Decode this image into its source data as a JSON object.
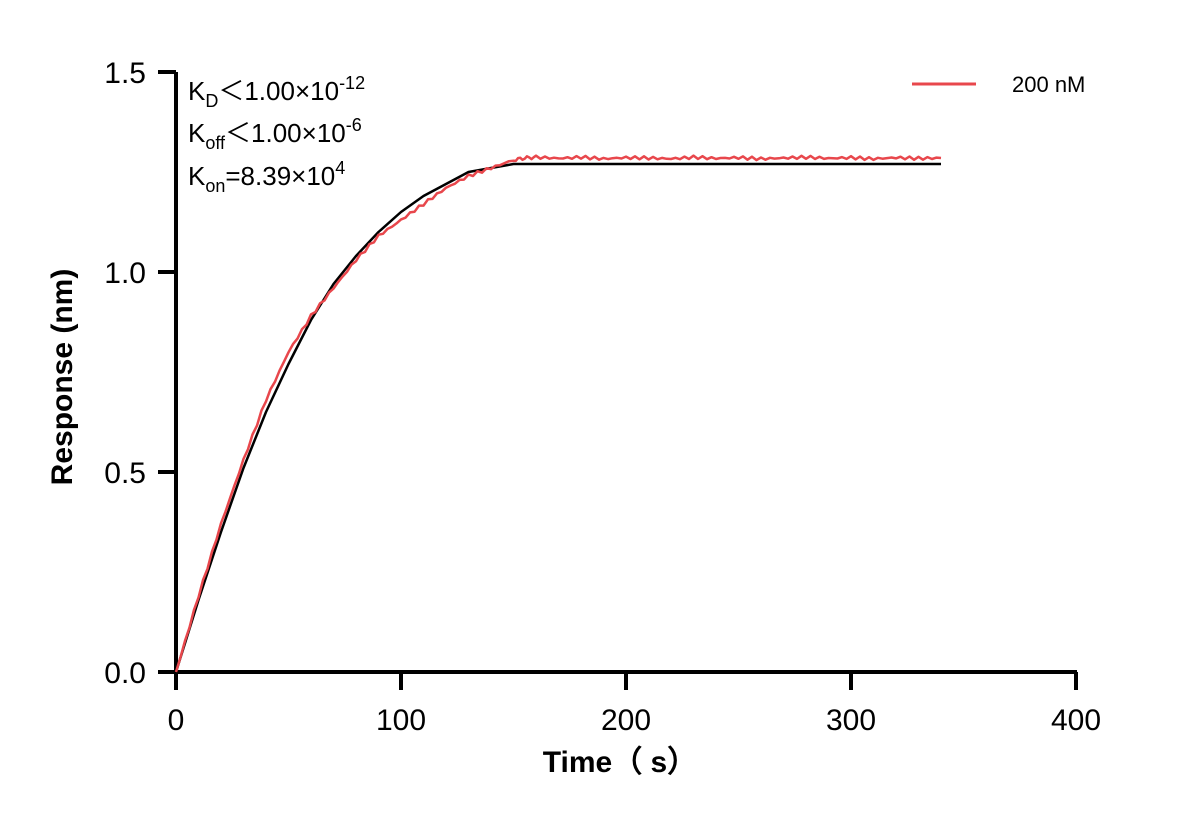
{
  "chart_data": {
    "type": "line",
    "title": "",
    "xlabel": "Time（ s）",
    "ylabel": "Response (nm)",
    "xlim": [
      0,
      400
    ],
    "ylim": [
      0,
      1.5
    ],
    "xticks": [
      "0",
      "100",
      "200",
      "300",
      "400"
    ],
    "yticks": [
      "0.0",
      "0.5",
      "1.0",
      "1.5"
    ],
    "grid": false,
    "legend_position": "top-right",
    "annotations": {
      "kd": {
        "base": "K",
        "sub": "D",
        "rel": "＜1.00×10",
        "exp": "-12"
      },
      "koff": {
        "base": "K",
        "sub": "off",
        "rel": "＜1.00×10",
        "exp": "-6"
      },
      "kon": {
        "base": "K",
        "sub": "on",
        "rel": "=8.39×10",
        "exp": "4"
      }
    },
    "series": [
      {
        "name": "200 nM",
        "color": "#e8474c",
        "role": "measured",
        "x": [
          0,
          10,
          20,
          30,
          40,
          50,
          60,
          70,
          80,
          90,
          100,
          110,
          120,
          130,
          140,
          150,
          155,
          160,
          170,
          180,
          190,
          200,
          210,
          220,
          230,
          240,
          250,
          260,
          270,
          280,
          290,
          300,
          310,
          320,
          330,
          340
        ],
        "y": [
          0,
          0.19,
          0.37,
          0.53,
          0.68,
          0.8,
          0.89,
          0.96,
          1.03,
          1.09,
          1.13,
          1.17,
          1.21,
          1.24,
          1.26,
          1.28,
          1.285,
          1.287,
          1.284,
          1.287,
          1.283,
          1.286,
          1.285,
          1.283,
          1.287,
          1.284,
          1.286,
          1.283,
          1.285,
          1.287,
          1.284,
          1.286,
          1.283,
          1.286,
          1.284,
          1.285
        ]
      },
      {
        "color": "#000000",
        "role": "fit",
        "x": [
          0,
          10,
          20,
          30,
          40,
          50,
          60,
          70,
          80,
          90,
          100,
          110,
          120,
          130,
          140,
          150,
          340
        ],
        "y": [
          0,
          0.18,
          0.35,
          0.51,
          0.65,
          0.77,
          0.88,
          0.97,
          1.04,
          1.1,
          1.15,
          1.19,
          1.22,
          1.25,
          1.26,
          1.27,
          1.27
        ]
      }
    ]
  }
}
